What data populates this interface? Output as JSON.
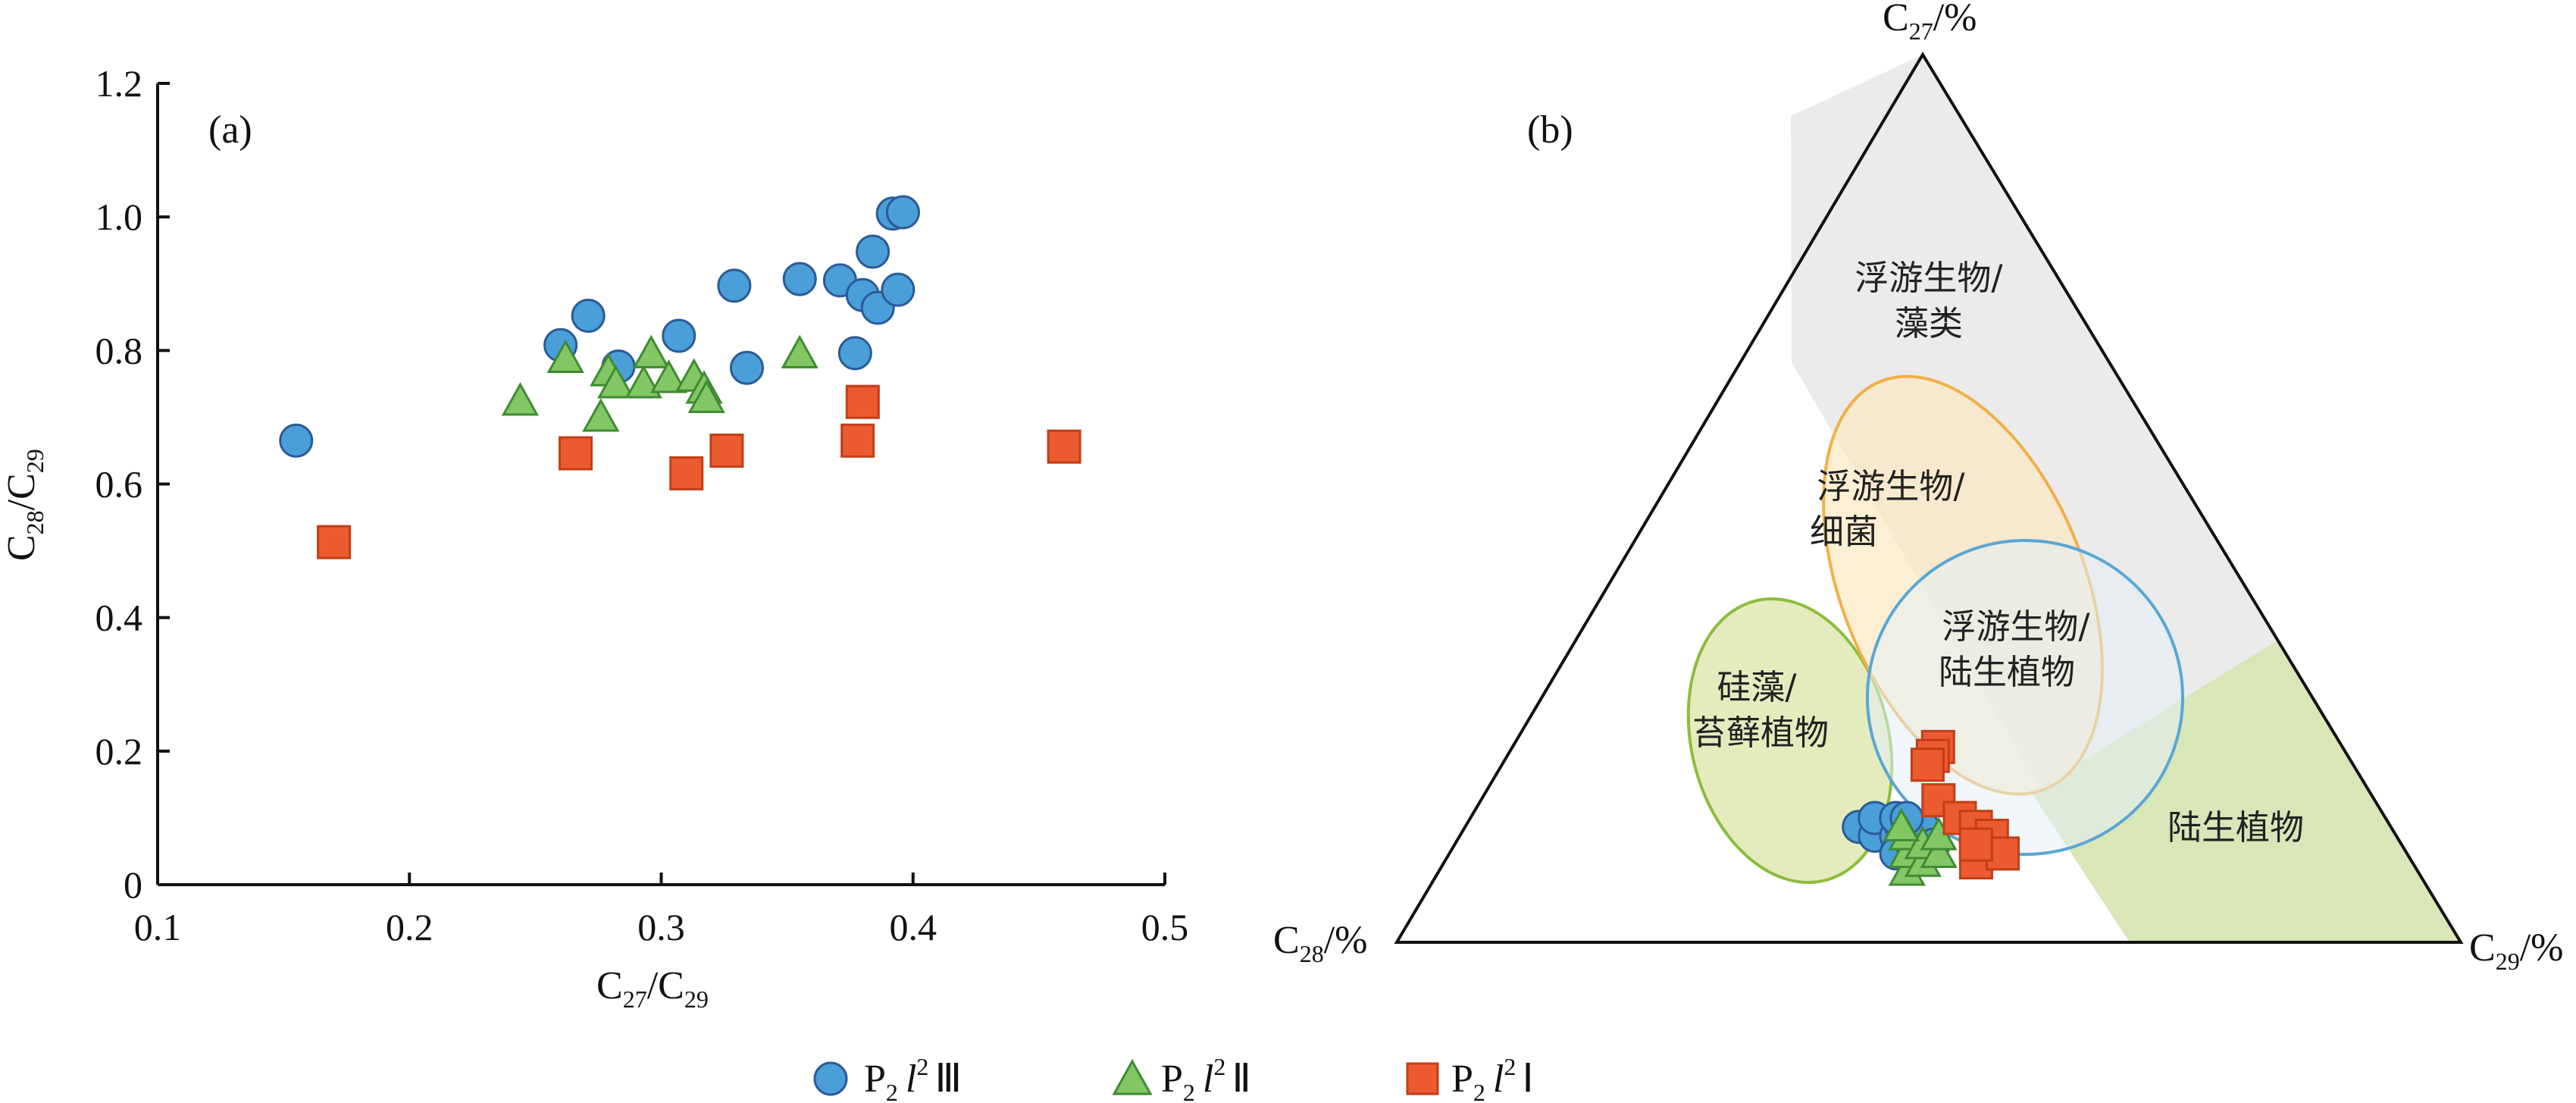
{
  "colors": {
    "circle": "#4a9fd8",
    "circle_edge": "#2b5b97",
    "triangle": "#82c764",
    "triangle_edge": "#3f8a32",
    "square": "#ec5b2f",
    "square_edge": "#c23e18",
    "ellipse_green_fill": "#dfe9b3",
    "ellipse_green_edge": "#8bbd3c",
    "ellipse_orange_fill": "#fbe8c0",
    "ellipse_orange_edge": "#f0b048",
    "ellipse_blue_fill": "#e3eef6",
    "ellipse_blue_edge": "#5aa7d4",
    "region_grey": "#e6e6e6",
    "region_green": "#d8e6b8"
  },
  "legend": [
    {
      "marker": "circle",
      "base": "P",
      "sub1": "2",
      "l": "l",
      "sup": "2",
      "roman": "Ⅲ"
    },
    {
      "marker": "triangle",
      "base": "P",
      "sub1": "2",
      "l": "l",
      "sup": "2",
      "roman": "Ⅱ"
    },
    {
      "marker": "square",
      "base": "P",
      "sub1": "2",
      "l": "l",
      "sup": "2",
      "roman": "Ⅰ"
    }
  ],
  "chart_data": [
    {
      "type": "scatter",
      "panel_label": "(a)",
      "xlabel": {
        "c1": "C",
        "s1": "27",
        "slash": "/C",
        "s2": "29"
      },
      "ylabel": {
        "c1": "C",
        "s1": "28",
        "slash": "/C",
        "s2": "29"
      },
      "xlim": [
        0.1,
        0.5
      ],
      "ylim": [
        0,
        1.2
      ],
      "xticks": [
        "0.1",
        "0.2",
        "0.3",
        "0.4",
        "0.5"
      ],
      "yticks": [
        "0",
        "0.2",
        "0.4",
        "0.6",
        "0.8",
        "1.0",
        "1.2"
      ],
      "grid": false,
      "series": [
        {
          "marker": "circle",
          "points": [
            [
              0.155,
              0.665
            ],
            [
              0.26,
              0.808
            ],
            [
              0.271,
              0.852
            ],
            [
              0.283,
              0.776
            ],
            [
              0.307,
              0.822
            ],
            [
              0.329,
              0.897
            ],
            [
              0.334,
              0.774
            ],
            [
              0.355,
              0.907
            ],
            [
              0.371,
              0.905
            ],
            [
              0.377,
              0.796
            ],
            [
              0.38,
              0.883
            ],
            [
              0.384,
              0.948
            ],
            [
              0.386,
              0.864
            ],
            [
              0.392,
              1.005
            ],
            [
              0.394,
              0.891
            ],
            [
              0.396,
              1.007
            ]
          ]
        },
        {
          "marker": "triangle",
          "points": [
            [
              0.244,
              0.724
            ],
            [
              0.262,
              0.788
            ],
            [
              0.276,
              0.7
            ],
            [
              0.279,
              0.768
            ],
            [
              0.282,
              0.75
            ],
            [
              0.293,
              0.75
            ],
            [
              0.296,
              0.795
            ],
            [
              0.303,
              0.758
            ],
            [
              0.313,
              0.76
            ],
            [
              0.317,
              0.742
            ],
            [
              0.318,
              0.728
            ],
            [
              0.355,
              0.795
            ]
          ]
        },
        {
          "marker": "square",
          "points": [
            [
              0.17,
              0.513
            ],
            [
              0.266,
              0.646
            ],
            [
              0.31,
              0.616
            ],
            [
              0.326,
              0.65
            ],
            [
              0.378,
              0.665
            ],
            [
              0.38,
              0.723
            ],
            [
              0.46,
              0.656
            ]
          ]
        }
      ]
    },
    {
      "type": "ternary",
      "panel_label": "(b)",
      "axis_labels": {
        "top": {
          "c": "C",
          "s": "27",
          "u": "/%"
        },
        "left": {
          "c": "C",
          "s": "28",
          "u": "/%"
        },
        "right": {
          "c": "C",
          "s": "29",
          "u": "/%"
        }
      },
      "regions": {
        "plankton_algae": [
          "浮游生物/",
          "藻类"
        ],
        "plankton_bacteria": [
          "浮游生物/",
          "细菌"
        ],
        "plankton_land": [
          "浮游生物/",
          "陆生植物"
        ],
        "diatom_moss": [
          "硅藻/",
          "苔藓植物"
        ],
        "land_plants": [
          "陆生植物"
        ]
      },
      "series": [
        {
          "marker": "circle",
          "points": [
            [
              0.13,
              0.5,
              0.37
            ],
            [
              0.12,
              0.49,
              0.39
            ],
            [
              0.14,
              0.48,
              0.38
            ],
            [
              0.12,
              0.47,
              0.41
            ],
            [
              0.1,
              0.48,
              0.42
            ],
            [
              0.13,
              0.46,
              0.41
            ],
            [
              0.11,
              0.46,
              0.43
            ],
            [
              0.14,
              0.46,
              0.4
            ],
            [
              0.12,
              0.45,
              0.43
            ],
            [
              0.13,
              0.44,
              0.43
            ],
            [
              0.11,
              0.44,
              0.45
            ],
            [
              0.14,
              0.45,
              0.41
            ]
          ]
        },
        {
          "marker": "triangle",
          "points": [
            [
              0.08,
              0.48,
              0.44
            ],
            [
              0.1,
              0.47,
              0.43
            ],
            [
              0.12,
              0.46,
              0.42
            ],
            [
              0.09,
              0.46,
              0.45
            ],
            [
              0.11,
              0.45,
              0.44
            ],
            [
              0.13,
              0.46,
              0.41
            ],
            [
              0.1,
              0.44,
              0.46
            ],
            [
              0.12,
              0.43,
              0.45
            ]
          ]
        },
        {
          "marker": "square",
          "points": [
            [
              0.22,
              0.38,
              0.4
            ],
            [
              0.21,
              0.39,
              0.4
            ],
            [
              0.2,
              0.4,
              0.4
            ],
            [
              0.16,
              0.41,
              0.43
            ],
            [
              0.14,
              0.4,
              0.46
            ],
            [
              0.13,
              0.39,
              0.48
            ],
            [
              0.12,
              0.38,
              0.5
            ],
            [
              0.09,
              0.41,
              0.5
            ],
            [
              0.1,
              0.38,
              0.52
            ],
            [
              0.11,
              0.4,
              0.49
            ]
          ]
        }
      ]
    }
  ]
}
